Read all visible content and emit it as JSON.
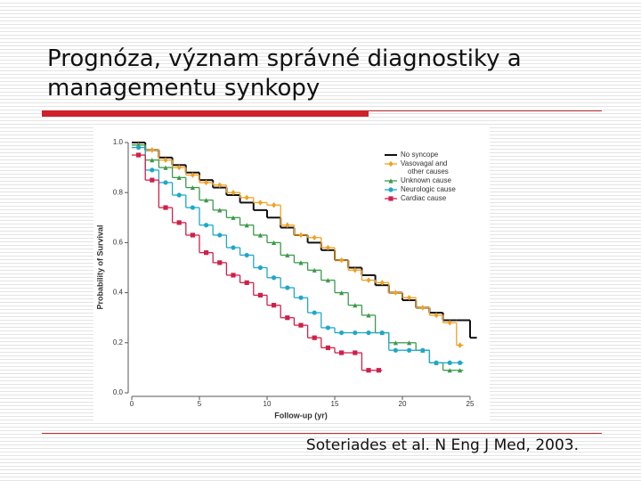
{
  "slide": {
    "title": "Prognóza, význam správné diagnostiky a managementu synkopy",
    "citation": "Soteriades et al. N Eng J Med, 2003."
  },
  "chart_data": {
    "type": "step",
    "x_label": "Follow-up (yr)",
    "y_label": "Probability of Survival",
    "x": [
      0,
      1,
      2,
      3,
      4,
      5,
      6,
      7,
      8,
      9,
      10,
      11,
      12,
      13,
      14,
      15,
      16,
      17,
      18,
      19,
      20,
      21,
      22,
      23,
      24,
      25
    ],
    "xlim": [
      0,
      25
    ],
    "xticks": [
      0,
      5,
      10,
      15,
      20,
      25
    ],
    "ylim": [
      0,
      1
    ],
    "yticks": [
      {
        "value": 0,
        "label": "0.0"
      },
      0.2,
      0.4,
      0.6,
      0.8,
      {
        "value": 1,
        "label": "1.0"
      }
    ],
    "series": [
      {
        "name": "No syncope",
        "color": "#111111",
        "marker": "none",
        "values": [
          1.0,
          0.97,
          0.94,
          0.91,
          0.88,
          0.85,
          0.82,
          0.79,
          0.76,
          0.73,
          0.7,
          0.66,
          0.63,
          0.6,
          0.57,
          0.53,
          0.5,
          0.47,
          0.43,
          0.4,
          0.37,
          0.34,
          0.32,
          0.29,
          0.29,
          0.22
        ]
      },
      {
        "name": "Vasovagal and other causes",
        "color": "#f0a020",
        "marker": "diamond",
        "values": [
          0.99,
          0.97,
          0.93,
          0.9,
          0.87,
          0.84,
          0.83,
          0.8,
          0.78,
          0.76,
          0.75,
          0.67,
          0.63,
          0.62,
          0.58,
          0.53,
          0.49,
          0.45,
          0.44,
          0.4,
          0.38,
          0.34,
          0.31,
          0.28,
          0.19,
          null
        ]
      },
      {
        "name": "Unknown cause",
        "color": "#3a9a4a",
        "marker": "triangle",
        "values": [
          0.99,
          0.93,
          0.9,
          0.86,
          0.82,
          0.77,
          0.73,
          0.7,
          0.67,
          0.63,
          0.6,
          0.55,
          0.52,
          0.49,
          0.45,
          0.4,
          0.35,
          0.31,
          0.24,
          0.2,
          0.2,
          0.17,
          0.12,
          0.09,
          0.09,
          null
        ]
      },
      {
        "name": "Neurologic cause",
        "color": "#1ea8c8",
        "marker": "circle",
        "values": [
          0.98,
          0.89,
          0.84,
          0.79,
          0.74,
          0.67,
          0.63,
          0.58,
          0.55,
          0.5,
          0.46,
          0.42,
          0.38,
          0.32,
          0.26,
          0.24,
          0.24,
          0.24,
          0.24,
          0.17,
          0.17,
          0.17,
          0.12,
          0.12,
          0.12,
          null
        ]
      },
      {
        "name": "Cardiac cause",
        "color": "#d0204a",
        "marker": "square",
        "values": [
          0.95,
          0.85,
          0.74,
          0.68,
          0.63,
          0.56,
          0.52,
          0.47,
          0.44,
          0.39,
          0.35,
          0.3,
          0.27,
          0.22,
          0.18,
          0.16,
          0.16,
          0.09,
          0.09,
          null,
          null,
          null,
          null,
          null,
          null,
          null
        ]
      }
    ]
  }
}
